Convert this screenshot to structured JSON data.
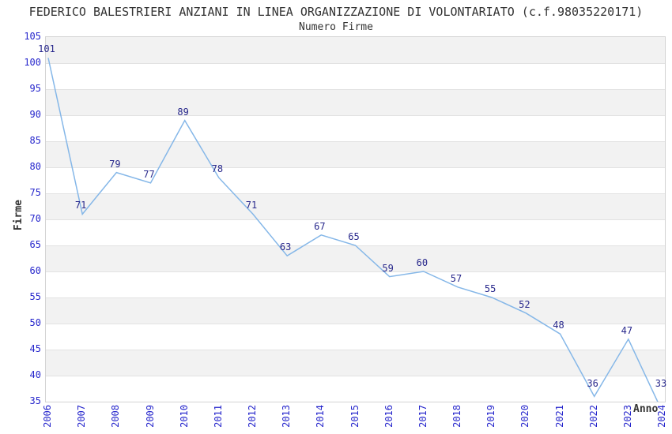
{
  "chart_data": {
    "type": "line",
    "title": "FEDERICO BALESTRIERI ANZIANI IN LINEA ORGANIZZAZIONE DI VOLONTARIATO (c.f.98035220171)",
    "subtitle": "Numero Firme",
    "xlabel": "Anno",
    "ylabel": "Firme",
    "x": [
      2006,
      2007,
      2008,
      2009,
      2010,
      2011,
      2012,
      2013,
      2014,
      2015,
      2016,
      2017,
      2018,
      2019,
      2020,
      2021,
      2022,
      2023,
      2024
    ],
    "values": [
      101,
      71,
      79,
      77,
      89,
      78,
      71,
      63,
      67,
      65,
      59,
      60,
      57,
      55,
      52,
      48,
      36,
      47,
      33
    ],
    "ylim": [
      35,
      105
    ],
    "ytick_step": 5,
    "y_ticks": [
      "105",
      "100",
      "95",
      "90",
      "85",
      "80",
      "75",
      "70",
      "65",
      "60",
      "55",
      "50",
      "45",
      "40",
      "35"
    ],
    "grid": true,
    "legend": false,
    "point_labels_visible": true,
    "colors": {
      "line": "#85b7e8",
      "axis_tick_text": "#2626cc",
      "point_label_text": "#28288c",
      "band_alt": "#f2f2f2",
      "band_main": "#ffffff",
      "gridline": "#e2e2e2",
      "plot_border": "#d3d3d3",
      "title_text": "#333333"
    }
  }
}
